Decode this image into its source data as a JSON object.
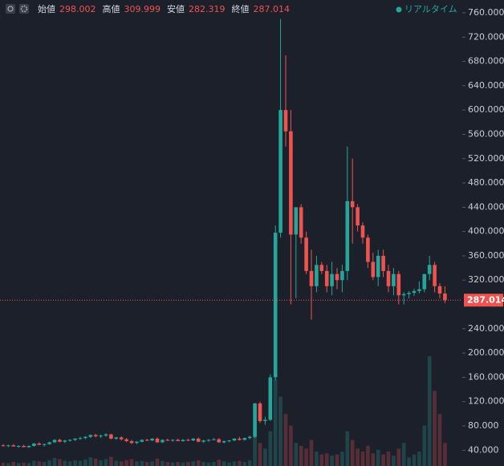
{
  "chart_data": {
    "type": "candlestick",
    "header": [
      {
        "label": "始値",
        "value": 298.002
      },
      {
        "label": "高値",
        "value": 309.999
      },
      {
        "label": "安値",
        "value": 282.319
      },
      {
        "label": "終値",
        "value": 287.014
      }
    ],
    "status": "リアルタイム",
    "up_color": "#26a69a",
    "down_color": "#ef5350",
    "ylim": [
      14,
      760
    ],
    "yticks": [
      {
        "value": 760,
        "label": "760.000"
      },
      {
        "value": 720,
        "label": "720.000"
      },
      {
        "value": 680,
        "label": "680.000"
      },
      {
        "value": 640,
        "label": "640.000"
      },
      {
        "value": 600,
        "label": "600.000"
      },
      {
        "value": 560,
        "label": "560.000"
      },
      {
        "value": 520,
        "label": "520.000"
      },
      {
        "value": 480,
        "label": "480.000"
      },
      {
        "value": 440,
        "label": "440.000"
      },
      {
        "value": 400,
        "label": "400.000"
      },
      {
        "value": 360,
        "label": "360.000"
      },
      {
        "value": 320,
        "label": "320.000"
      },
      {
        "value": 240,
        "label": "240.000"
      },
      {
        "value": 200,
        "label": "200.000"
      },
      {
        "value": 160,
        "label": "160.000"
      },
      {
        "value": 120,
        "label": "120.000"
      },
      {
        "value": 80,
        "label": "80.000"
      },
      {
        "value": 40,
        "label": "40.000"
      }
    ],
    "last_price": 287.014,
    "open": [
      48,
      47,
      48,
      46,
      47,
      45,
      47,
      51,
      49,
      50,
      53,
      57,
      54,
      56,
      57,
      59,
      60,
      62,
      65,
      63,
      64,
      66,
      59,
      61,
      58,
      55,
      52,
      54,
      57,
      56,
      59,
      53,
      57,
      56,
      57,
      55,
      57,
      56,
      59,
      54,
      56,
      57,
      58,
      53,
      55,
      56,
      59,
      57,
      60,
      62,
      117,
      88,
      90,
      160,
      398,
      600,
      565,
      395,
      440,
      390,
      335,
      310,
      345,
      335,
      310,
      330,
      320,
      335,
      450,
      440,
      410,
      390,
      350,
      325,
      360,
      335,
      310,
      330,
      295,
      297,
      299,
      302,
      305,
      330,
      345,
      310,
      298
    ],
    "high": [
      50,
      49,
      50,
      48,
      49,
      48,
      52,
      53,
      51,
      54,
      58,
      59,
      57,
      58,
      60,
      62,
      63,
      66,
      67,
      66,
      68,
      67,
      62,
      63,
      60,
      57,
      55,
      58,
      59,
      60,
      61,
      58,
      59,
      58,
      59,
      58,
      59,
      60,
      61,
      57,
      58,
      60,
      60,
      56,
      57,
      60,
      62,
      61,
      64,
      118,
      120,
      95,
      165,
      410,
      750,
      690,
      600,
      440,
      445,
      400,
      370,
      360,
      350,
      345,
      350,
      340,
      345,
      540,
      520,
      445,
      415,
      395,
      365,
      370,
      370,
      345,
      340,
      335,
      300,
      302,
      306,
      318,
      330,
      360,
      350,
      315,
      310
    ],
    "low": [
      46,
      45,
      46,
      44,
      45,
      44,
      46,
      48,
      46,
      49,
      52,
      53,
      52,
      54,
      55,
      57,
      58,
      60,
      61,
      60,
      62,
      58,
      57,
      56,
      53,
      50,
      50,
      53,
      55,
      55,
      52,
      52,
      55,
      54,
      55,
      54,
      55,
      55,
      53,
      52,
      54,
      56,
      52,
      51,
      53,
      55,
      56,
      56,
      58,
      60,
      85,
      82,
      88,
      155,
      390,
      540,
      280,
      290,
      380,
      330,
      255,
      300,
      330,
      300,
      295,
      305,
      300,
      320,
      380,
      400,
      380,
      340,
      320,
      310,
      325,
      300,
      295,
      280,
      280,
      290,
      294,
      298,
      300,
      320,
      300,
      290,
      282
    ],
    "close": [
      47,
      48,
      46,
      47,
      45,
      47,
      51,
      49,
      50,
      53,
      57,
      54,
      56,
      57,
      59,
      60,
      62,
      65,
      63,
      64,
      66,
      59,
      61,
      58,
      55,
      52,
      54,
      57,
      56,
      59,
      53,
      57,
      56,
      57,
      55,
      57,
      56,
      59,
      54,
      56,
      57,
      58,
      53,
      55,
      56,
      59,
      57,
      60,
      62,
      117,
      88,
      90,
      160,
      398,
      600,
      565,
      395,
      440,
      390,
      335,
      310,
      345,
      335,
      310,
      330,
      320,
      335,
      450,
      440,
      410,
      390,
      350,
      325,
      360,
      335,
      310,
      330,
      295,
      297,
      299,
      302,
      305,
      330,
      345,
      310,
      298,
      287
    ],
    "volume": [
      6,
      5,
      7,
      5,
      6,
      5,
      9,
      8,
      7,
      10,
      14,
      12,
      9,
      8,
      10,
      9,
      11,
      15,
      13,
      10,
      12,
      16,
      9,
      8,
      10,
      12,
      8,
      9,
      7,
      8,
      13,
      9,
      7,
      6,
      7,
      6,
      7,
      8,
      10,
      7,
      6,
      7,
      11,
      8,
      6,
      8,
      9,
      7,
      10,
      55,
      40,
      30,
      60,
      150,
      120,
      90,
      70,
      40,
      35,
      30,
      45,
      25,
      20,
      22,
      18,
      20,
      25,
      60,
      45,
      30,
      25,
      35,
      22,
      28,
      20,
      25,
      18,
      30,
      40,
      15,
      20,
      25,
      70,
      190,
      130,
      90,
      40
    ]
  }
}
